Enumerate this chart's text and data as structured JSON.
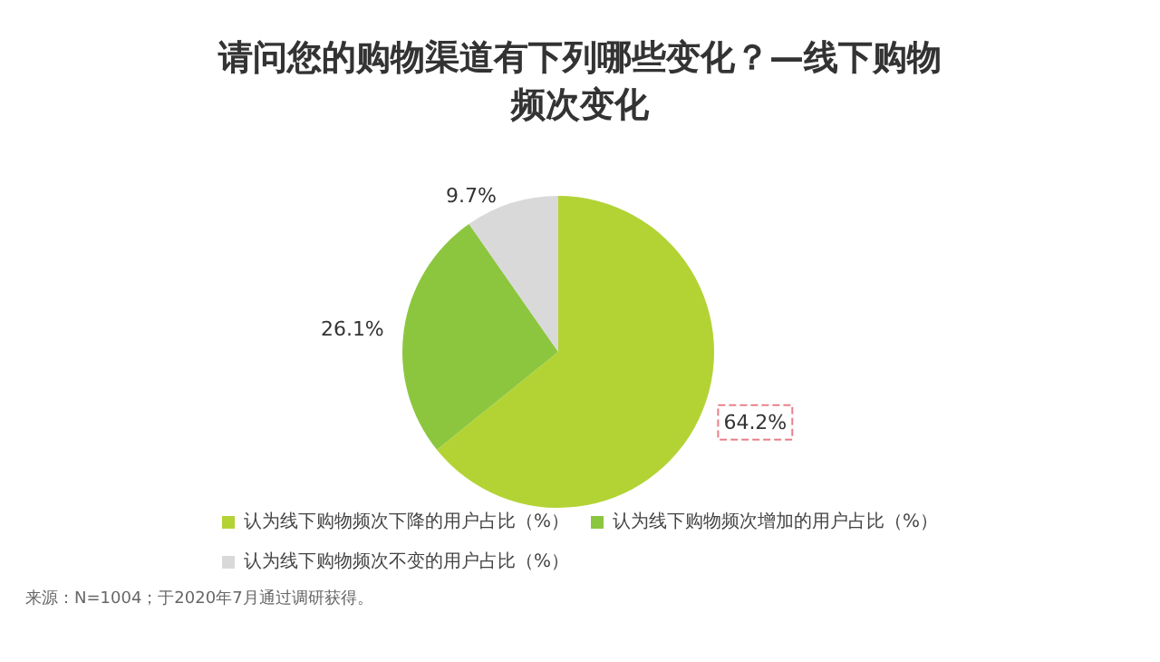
{
  "chart_data": {
    "type": "pie",
    "title": "请问您的购物渠道有下列哪些变化？—线下购物频次变化",
    "categories": [
      "认为线下购物频次下降的用户占比（%）",
      "认为线下购物频次增加的用户占比（%）",
      "认为线下购物频次不变的用户占比（%）"
    ],
    "values": [
      64.2,
      26.1,
      9.7
    ],
    "colors": [
      "#b3d335",
      "#8cc63f",
      "#d9d9d9"
    ],
    "value_labels": [
      "64.2%",
      "26.1%",
      "9.7%"
    ],
    "legend": "bottom",
    "annotations": [
      "来源：N=1004；于2020年7月通过调研获得。"
    ]
  }
}
